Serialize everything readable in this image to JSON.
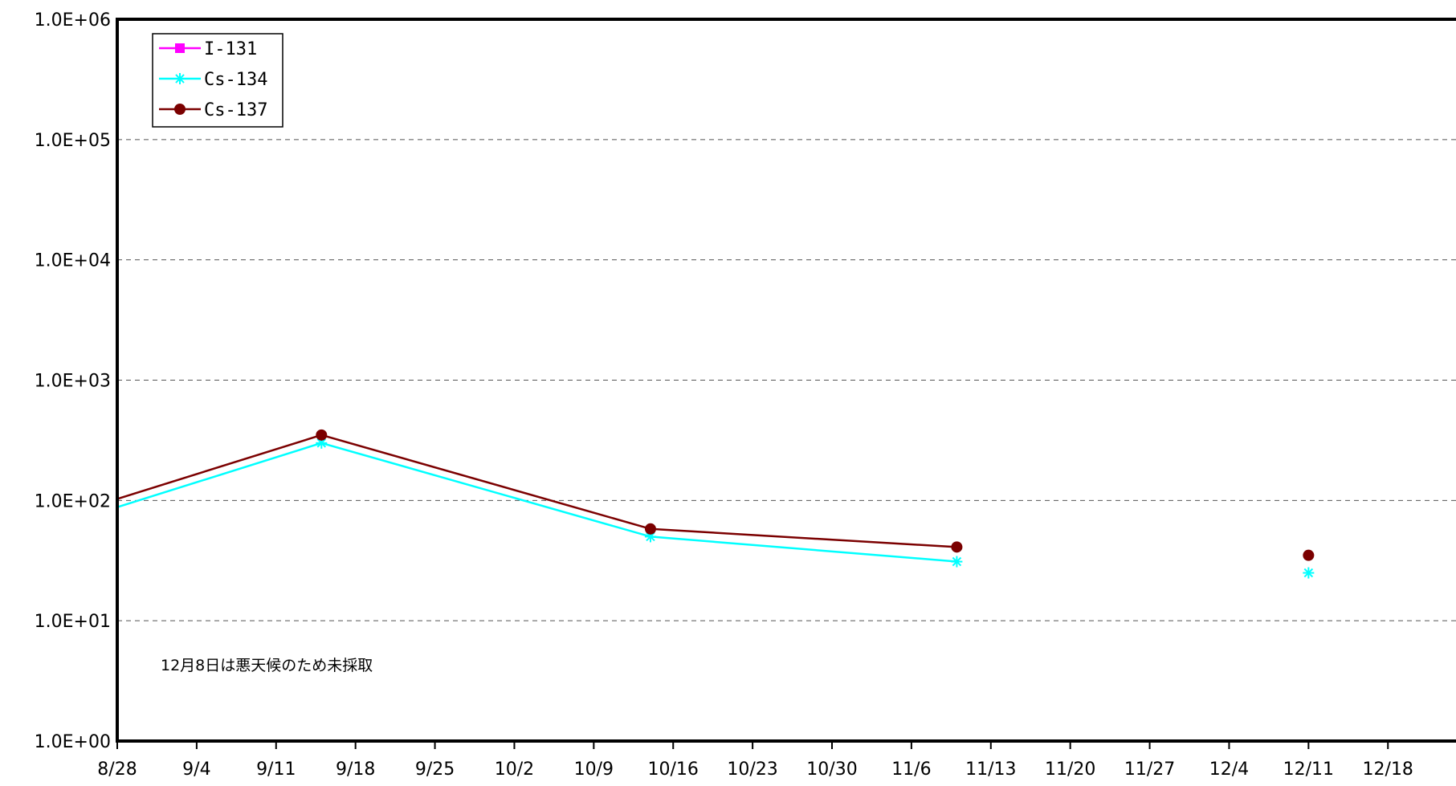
{
  "chart_data": {
    "type": "line",
    "y_scale": "log",
    "ylim": [
      1,
      1000000
    ],
    "y_ticks": [
      1,
      10,
      100,
      1000,
      10000,
      100000,
      1000000
    ],
    "y_tick_labels": [
      "1.0E+00",
      "1.0E+01",
      "1.0E+02",
      "1.0E+03",
      "1.0E+04",
      "1.0E+05",
      "1.0E+06"
    ],
    "xlim": [
      "8/28",
      "12/24"
    ],
    "x_tick_labels": [
      "8/28",
      "9/4",
      "9/11",
      "9/18",
      "9/25",
      "10/2",
      "10/9",
      "10/16",
      "10/23",
      "10/30",
      "11/6",
      "11/13",
      "11/20",
      "11/27",
      "12/4",
      "12/11",
      "12/18"
    ],
    "grid": "horizontal dashed",
    "legend_position": "top-left",
    "series": [
      {
        "name": "I-131",
        "color": "#ff00ff",
        "marker": "square",
        "points": []
      },
      {
        "name": "Cs-134",
        "color": "#00ffff",
        "marker": "asterisk",
        "points": [
          {
            "x": "8/28",
            "y": 88
          },
          {
            "x": "9/15",
            "y": 300
          },
          {
            "x": "10/14",
            "y": 50
          },
          {
            "x": "11/10",
            "y": 31
          },
          {
            "x": "12/11",
            "y": 25
          }
        ],
        "gap_before_last": true
      },
      {
        "name": "Cs-137",
        "color": "#7b0000",
        "marker": "circle",
        "points": [
          {
            "x": "8/28",
            "y": 103
          },
          {
            "x": "9/15",
            "y": 350
          },
          {
            "x": "10/14",
            "y": 58
          },
          {
            "x": "11/10",
            "y": 41
          },
          {
            "x": "12/11",
            "y": 35
          }
        ],
        "gap_before_last": true
      }
    ],
    "annotation": "12月8日は悪天候のため未採取"
  }
}
